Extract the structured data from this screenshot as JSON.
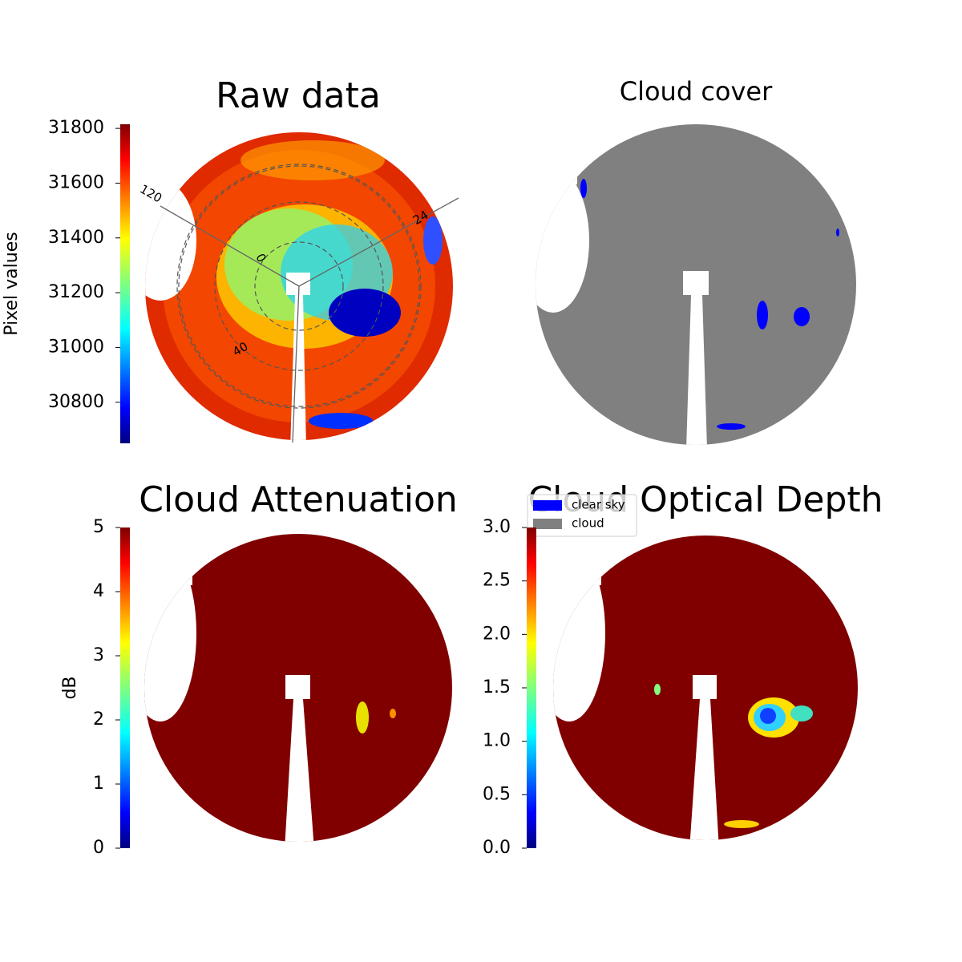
{
  "chart_data": [
    {
      "type": "image",
      "title": "Raw data",
      "polar_labels": [
        "120",
        "0",
        "40",
        "24"
      ],
      "colorbar": {
        "label": "Pixel values",
        "colormap": "jet",
        "lim": [
          30650,
          31815
        ],
        "ticks": [
          30800,
          31000,
          31200,
          31400,
          31600,
          31800
        ]
      }
    },
    {
      "type": "image",
      "title": "Cloud cover",
      "series": [
        {
          "name": "clear sky",
          "color": "#0000ff"
        },
        {
          "name": "cloud",
          "color": "#808080"
        }
      ]
    },
    {
      "type": "image",
      "title": "Cloud Attenuation",
      "colorbar": {
        "label": "dB",
        "colormap": "jet",
        "lim": [
          0,
          5
        ],
        "ticks": [
          0,
          1,
          2,
          3,
          4,
          5
        ]
      }
    },
    {
      "type": "image",
      "title": "Cloud Optical Depth",
      "colorbar": {
        "colormap": "jet",
        "lim": [
          0,
          3
        ],
        "ticks": [
          {
            "value": 0,
            "label": "0.0"
          },
          {
            "value": 0.5,
            "label": "0.5"
          },
          {
            "value": 1,
            "label": "1.0"
          },
          {
            "value": 1.5,
            "label": "1.5"
          },
          {
            "value": 2,
            "label": "2.0"
          },
          {
            "value": 2.5,
            "label": "2.5"
          },
          {
            "value": 3,
            "label": "3.0"
          }
        ]
      }
    }
  ]
}
